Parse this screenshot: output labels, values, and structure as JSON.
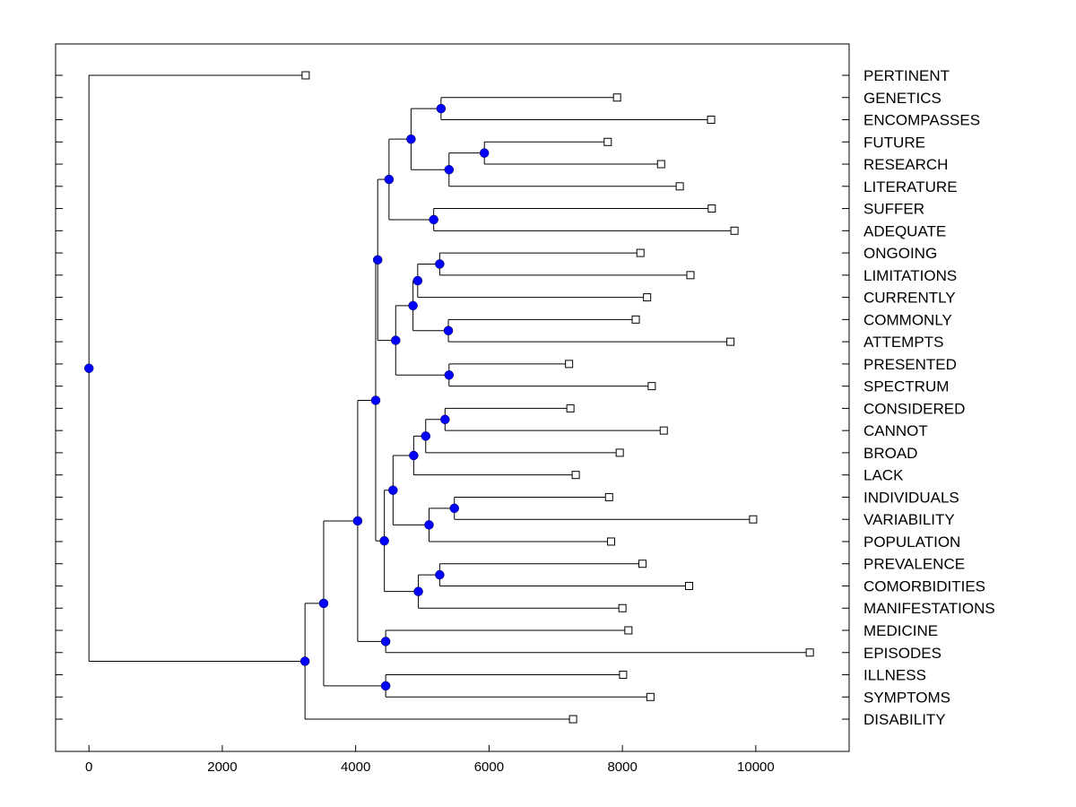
{
  "chart_data": {
    "type": "dendrogram",
    "orientation": "horizontal",
    "xlim": [
      -500,
      11400
    ],
    "x_ticks": [
      0,
      2000,
      4000,
      6000,
      8000,
      10000
    ],
    "x_tick_labels": [
      "0",
      "2000",
      "4000",
      "6000",
      "8000",
      "10000"
    ],
    "leaves": [
      {
        "label": "PERTINENT",
        "x": 3250
      },
      {
        "label": "GENETICS",
        "x": 7920
      },
      {
        "label": "ENCOMPASSES",
        "x": 9330
      },
      {
        "label": "FUTURE",
        "x": 7780
      },
      {
        "label": "RESEARCH",
        "x": 8580
      },
      {
        "label": "LITERATURE",
        "x": 8860
      },
      {
        "label": "SUFFER",
        "x": 9340
      },
      {
        "label": "ADEQUATE",
        "x": 9680
      },
      {
        "label": "ONGOING",
        "x": 8270
      },
      {
        "label": "LIMITATIONS",
        "x": 9020
      },
      {
        "label": "CURRENTLY",
        "x": 8370
      },
      {
        "label": "COMMONLY",
        "x": 8200
      },
      {
        "label": "ATTEMPTS",
        "x": 9620
      },
      {
        "label": "PRESENTED",
        "x": 7200
      },
      {
        "label": "SPECTRUM",
        "x": 8440
      },
      {
        "label": "CONSIDERED",
        "x": 7220
      },
      {
        "label": "CANNOT",
        "x": 8620
      },
      {
        "label": "BROAD",
        "x": 7960
      },
      {
        "label": "LACK",
        "x": 7300
      },
      {
        "label": "INDIVIDUALS",
        "x": 7800
      },
      {
        "label": "VARIABILITY",
        "x": 9960
      },
      {
        "label": "POPULATION",
        "x": 7830
      },
      {
        "label": "PREVALENCE",
        "x": 8300
      },
      {
        "label": "COMORBIDITIES",
        "x": 9000
      },
      {
        "label": "MANIFESTATIONS",
        "x": 8000
      },
      {
        "label": "MEDICINE",
        "x": 8090
      },
      {
        "label": "EPISODES",
        "x": 10810
      },
      {
        "label": "ILLNESS",
        "x": 8010
      },
      {
        "label": "SYMPTOMS",
        "x": 8420
      },
      {
        "label": "DISABILITY",
        "x": 7260
      }
    ],
    "merges": [
      {
        "id": "n1",
        "x": 5280,
        "children": [
          "L1",
          "L2"
        ]
      },
      {
        "id": "n2",
        "x": 5930,
        "children": [
          "L3",
          "L4"
        ]
      },
      {
        "id": "n3",
        "x": 5400,
        "children": [
          "n2",
          "L5"
        ]
      },
      {
        "id": "n4",
        "x": 4830,
        "children": [
          "n1",
          "n3"
        ]
      },
      {
        "id": "n5",
        "x": 5170,
        "children": [
          "L6",
          "L7"
        ]
      },
      {
        "id": "n6",
        "x": 4500,
        "children": [
          "n4",
          "n5"
        ]
      },
      {
        "id": "n7",
        "x": 5260,
        "children": [
          "L8",
          "L9"
        ]
      },
      {
        "id": "n8",
        "x": 4930,
        "children": [
          "n7",
          "L10"
        ]
      },
      {
        "id": "n9",
        "x": 5390,
        "children": [
          "L11",
          "L12"
        ]
      },
      {
        "id": "n10",
        "x": 4860,
        "children": [
          "n8",
          "n9"
        ]
      },
      {
        "id": "n11",
        "x": 5400,
        "children": [
          "L13",
          "L14"
        ]
      },
      {
        "id": "n12",
        "x": 4600,
        "children": [
          "n10",
          "n11"
        ]
      },
      {
        "id": "n13",
        "x": 4330,
        "children": [
          "n6",
          "n12"
        ]
      },
      {
        "id": "n14",
        "x": 5340,
        "children": [
          "L15",
          "L16"
        ]
      },
      {
        "id": "n15",
        "x": 5050,
        "children": [
          "n14",
          "L17"
        ]
      },
      {
        "id": "n16",
        "x": 4870,
        "children": [
          "n15",
          "L18"
        ]
      },
      {
        "id": "n17",
        "x": 5480,
        "children": [
          "L19",
          "L20"
        ]
      },
      {
        "id": "n18",
        "x": 5100,
        "children": [
          "n17",
          "L21"
        ]
      },
      {
        "id": "n19",
        "x": 4560,
        "children": [
          "n16",
          "n18"
        ]
      },
      {
        "id": "n20",
        "x": 5260,
        "children": [
          "L22",
          "L23"
        ]
      },
      {
        "id": "n21",
        "x": 4940,
        "children": [
          "n20",
          "L24"
        ]
      },
      {
        "id": "n22",
        "x": 4430,
        "children": [
          "n19",
          "n21"
        ]
      },
      {
        "id": "n23",
        "x": 4300,
        "children": [
          "n13",
          "n22"
        ]
      },
      {
        "id": "n24",
        "x": 4450,
        "children": [
          "L25",
          "L26"
        ]
      },
      {
        "id": "n25",
        "x": 4030,
        "children": [
          "n23",
          "n24"
        ]
      },
      {
        "id": "n26",
        "x": 4450,
        "children": [
          "L27",
          "L28"
        ]
      },
      {
        "id": "n27",
        "x": 3520,
        "children": [
          "n25",
          "n26"
        ]
      },
      {
        "id": "n28",
        "x": 3240,
        "children": [
          "n27",
          "L29"
        ]
      },
      {
        "id": "n29",
        "x": 0,
        "children": [
          "L0",
          "n28"
        ]
      }
    ],
    "colors": {
      "node_fill": "#0000ff",
      "line": "#000000",
      "leaf_marker_fill": "#ffffff"
    },
    "grid": false
  }
}
